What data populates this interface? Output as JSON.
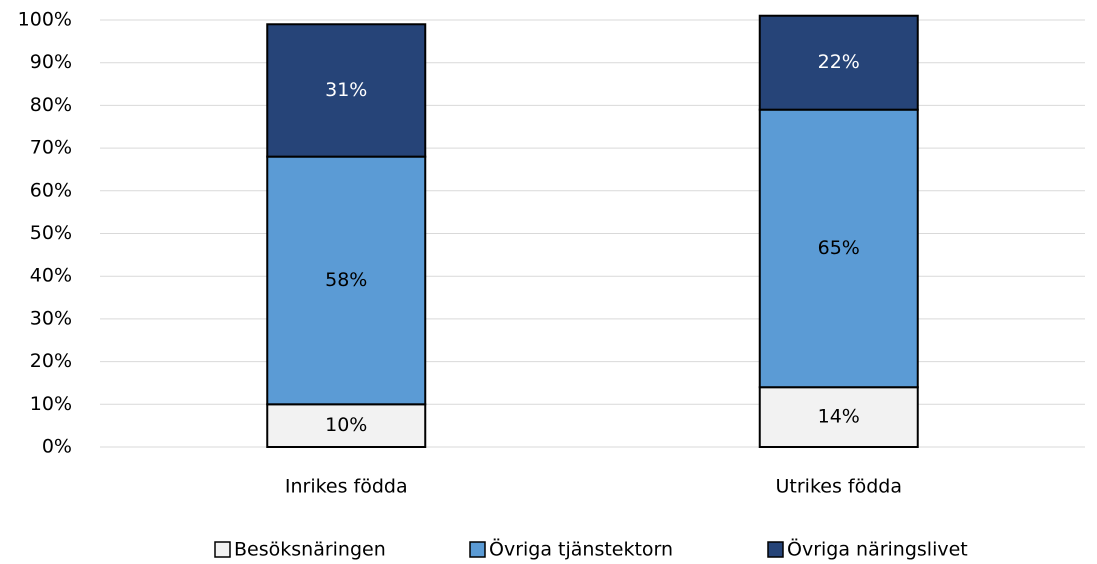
{
  "chart_data": {
    "type": "stacked_bar",
    "categories": [
      "Inrikes födda",
      "Utrikes födda"
    ],
    "series": [
      {
        "name": "Besöksnäringen",
        "color": "#f2f2f2",
        "values": [
          10,
          14
        ],
        "value_labels": [
          "10%",
          "14%"
        ]
      },
      {
        "name": "Övriga tjänstektorn",
        "color": "#5b9bd5",
        "values": [
          58,
          65
        ],
        "value_labels": [
          "58%",
          "65%"
        ]
      },
      {
        "name": "Övriga näringslivet",
        "color": "#264478",
        "values": [
          31,
          22
        ],
        "value_labels": [
          "31%",
          "22%"
        ]
      }
    ],
    "ylim": [
      0,
      100
    ],
    "yticks": [
      {
        "value": 0,
        "label": "0%"
      },
      {
        "value": 10,
        "label": "10%"
      },
      {
        "value": 20,
        "label": "20%"
      },
      {
        "value": 30,
        "label": "30%"
      },
      {
        "value": 40,
        "label": "40%"
      },
      {
        "value": 50,
        "label": "50%"
      },
      {
        "value": 60,
        "label": "60%"
      },
      {
        "value": 70,
        "label": "70%"
      },
      {
        "value": 80,
        "label": "80%"
      },
      {
        "value": 90,
        "label": "90%"
      },
      {
        "value": 100,
        "label": "100%"
      }
    ],
    "grid": true,
    "legend": "bottom"
  }
}
